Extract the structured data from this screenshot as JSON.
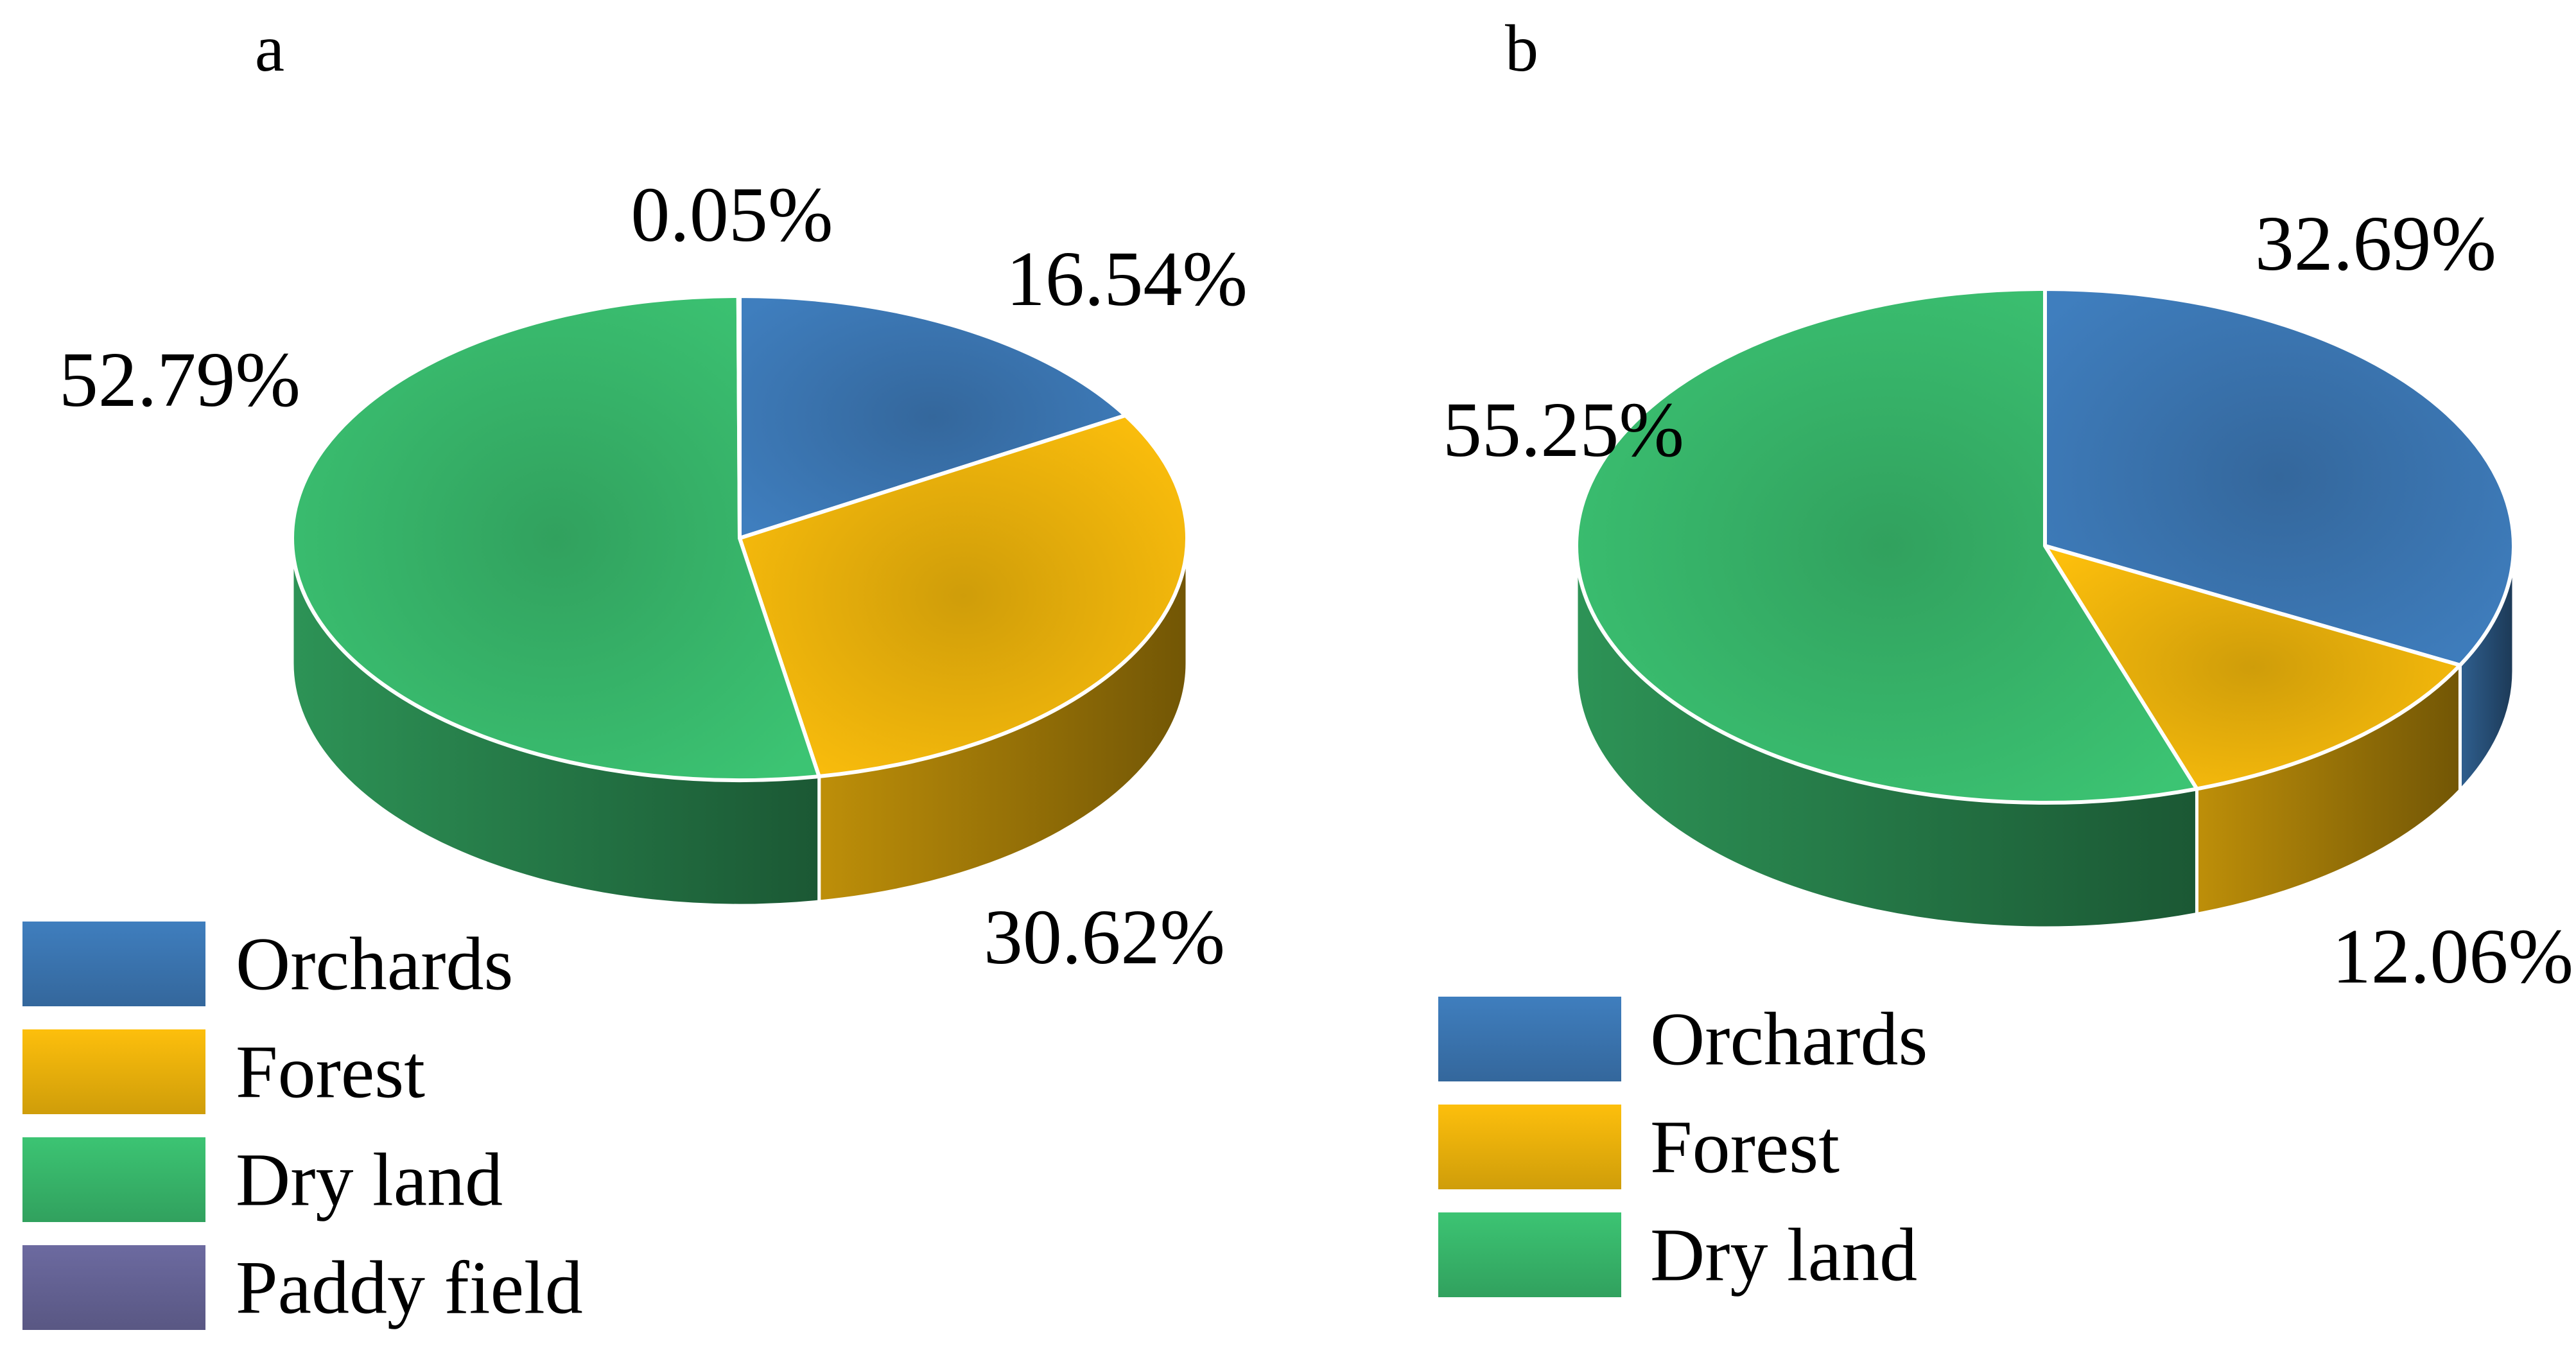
{
  "chart_data": [
    {
      "type": "pie",
      "panel_label": "a",
      "categories": [
        "Orchards",
        "Forest",
        "Dry land",
        "Paddy field"
      ],
      "values": [
        16.54,
        30.62,
        52.79,
        0.05
      ],
      "data_labels": [
        "16.54%",
        "30.62%",
        "52.79%",
        "0.05%"
      ],
      "colors": [
        "#3F7EBE",
        "#FDBF0C",
        "#3CC473",
        "#6C6AA0"
      ],
      "legend": [
        "Orchards",
        "Forest",
        "Dry land",
        "Paddy field"
      ],
      "legend_position": "bottom-left",
      "style": "3d"
    },
    {
      "type": "pie",
      "panel_label": "b",
      "categories": [
        "Orchards",
        "Forest",
        "Dry land"
      ],
      "values": [
        32.69,
        12.06,
        55.25
      ],
      "data_labels": [
        "32.69%",
        "12.06%",
        "55.25%"
      ],
      "colors": [
        "#3F7EBE",
        "#FDBF0C",
        "#3CC473"
      ],
      "legend": [
        "Orchards",
        "Forest",
        "Dry land"
      ],
      "legend_position": "bottom-left",
      "style": "3d"
    }
  ]
}
